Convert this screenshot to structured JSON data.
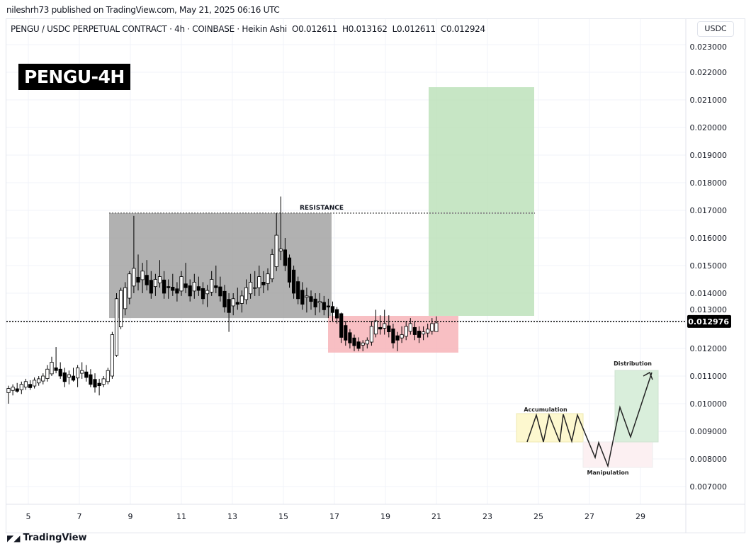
{
  "header": {
    "published": "nileshrh73 published on TradingView.com, May 21, 2025 06:16 UTC",
    "symbol": "PENGU / USDC PERPETUAL CONTRACT · 4h · COINBASE · Heikin Ashi",
    "ohlc": "O0.012611  H0.013162  L0.012611  C0.012924",
    "badge": "PENGU-4H",
    "currency": "USDC"
  },
  "footer": {
    "brand": "TradingView"
  },
  "colors": {
    "resistance_zone": "#9e9e9e",
    "support_zone": "#f7b4b8",
    "target_zone": "#b9e0b7",
    "price_line": "#000000",
    "candle": "#000000"
  },
  "chart_data": {
    "type": "candlestick",
    "ylim": [
      0.0065,
      0.0233
    ],
    "y_ticks": [
      "0.023000",
      "0.022000",
      "0.021000",
      "0.020000",
      "0.019000",
      "0.018000",
      "0.017000",
      "0.016000",
      "0.015000",
      "0.014000",
      "0.013000",
      "0.012000",
      "0.011000",
      "0.010000",
      "0.009000",
      "0.008000",
      "0.007000"
    ],
    "x_ticks": [
      "5",
      "7",
      "9",
      "11",
      "13",
      "15",
      "17",
      "19",
      "21",
      "23",
      "25",
      "27",
      "29"
    ],
    "last_price": "0.012976",
    "annotations": {
      "resistance_label": "RESISTANCE",
      "resistance_level": 0.0169,
      "resistance_zone": [
        0.0131,
        0.0169
      ],
      "support_zone": [
        0.01185,
        0.01318
      ],
      "target_zone": [
        0.01318,
        0.02146
      ],
      "inset": {
        "accumulation": "Accumulation",
        "manipulation": "Manipulation",
        "distribution": "Distribution"
      }
    },
    "candles": [
      [
        0.0104,
        0.01065,
        0.01,
        0.01055
      ],
      [
        0.01048,
        0.0107,
        0.0103,
        0.0106
      ],
      [
        0.01054,
        0.01075,
        0.0104,
        0.01045
      ],
      [
        0.0105,
        0.0108,
        0.01035,
        0.0107
      ],
      [
        0.0106,
        0.0109,
        0.0105,
        0.0108
      ],
      [
        0.0107,
        0.01085,
        0.0105,
        0.01058
      ],
      [
        0.01064,
        0.01095,
        0.01055,
        0.01085
      ],
      [
        0.01075,
        0.011,
        0.01065,
        0.0109
      ],
      [
        0.01082,
        0.0111,
        0.0107,
        0.011
      ],
      [
        0.01091,
        0.0114,
        0.0108,
        0.01125
      ],
      [
        0.01108,
        0.0117,
        0.011,
        0.0115
      ],
      [
        0.0113,
        0.01205,
        0.0111,
        0.0112
      ],
      [
        0.01125,
        0.0115,
        0.0109,
        0.011
      ],
      [
        0.01112,
        0.0113,
        0.0106,
        0.0108
      ],
      [
        0.01096,
        0.0112,
        0.0107,
        0.01105
      ],
      [
        0.011,
        0.0113,
        0.0108,
        0.01085
      ],
      [
        0.01093,
        0.0114,
        0.0106,
        0.0113
      ],
      [
        0.0111,
        0.0115,
        0.0109,
        0.0112
      ],
      [
        0.01115,
        0.0114,
        0.0108,
        0.01095
      ],
      [
        0.01105,
        0.01125,
        0.0106,
        0.0107
      ],
      [
        0.01088,
        0.0111,
        0.0104,
        0.0106
      ],
      [
        0.01074,
        0.0109,
        0.0103,
        0.01065
      ],
      [
        0.0107,
        0.011,
        0.0106,
        0.0109
      ],
      [
        0.0108,
        0.0113,
        0.0107,
        0.0112
      ],
      [
        0.011,
        0.0126,
        0.0109,
        0.0125
      ],
      [
        0.01175,
        0.014,
        0.0117,
        0.0138
      ],
      [
        0.01278,
        0.0142,
        0.0127,
        0.0141
      ],
      [
        0.01344,
        0.0144,
        0.0132,
        0.0142
      ],
      [
        0.01382,
        0.0148,
        0.0136,
        0.0147
      ],
      [
        0.01426,
        0.0168,
        0.014,
        0.0149
      ],
      [
        0.01458,
        0.0154,
        0.0141,
        0.0144
      ],
      [
        0.01449,
        0.0151,
        0.014,
        0.0148
      ],
      [
        0.01465,
        0.0152,
        0.0141,
        0.0143
      ],
      [
        0.01447,
        0.0148,
        0.0138,
        0.014
      ],
      [
        0.01424,
        0.0147,
        0.0139,
        0.0145
      ],
      [
        0.01437,
        0.0152,
        0.0142,
        0.0146
      ],
      [
        0.01448,
        0.0148,
        0.0138,
        0.014
      ],
      [
        0.01424,
        0.0145,
        0.0138,
        0.0142
      ],
      [
        0.01422,
        0.0147,
        0.0139,
        0.0141
      ],
      [
        0.01416,
        0.0144,
        0.0137,
        0.014
      ],
      [
        0.01408,
        0.0148,
        0.0139,
        0.0146
      ],
      [
        0.01434,
        0.0151,
        0.014,
        0.0142
      ],
      [
        0.01427,
        0.0145,
        0.0137,
        0.0139
      ],
      [
        0.01408,
        0.0147,
        0.0138,
        0.0144
      ],
      [
        0.01424,
        0.0146,
        0.0139,
        0.0141
      ],
      [
        0.01417,
        0.0144,
        0.0136,
        0.0138
      ],
      [
        0.01398,
        0.0143,
        0.0135,
        0.0141
      ],
      [
        0.01404,
        0.0148,
        0.0139,
        0.0145
      ],
      [
        0.01427,
        0.015,
        0.014,
        0.0142
      ],
      [
        0.01423,
        0.0146,
        0.0137,
        0.0139
      ],
      [
        0.01407,
        0.0143,
        0.0133,
        0.0135
      ],
      [
        0.01378,
        0.014,
        0.0126,
        0.0133
      ],
      [
        0.01354,
        0.014,
        0.0132,
        0.0138
      ],
      [
        0.01367,
        0.0142,
        0.0134,
        0.0136
      ],
      [
        0.01363,
        0.0141,
        0.0133,
        0.0139
      ],
      [
        0.01377,
        0.0145,
        0.0136,
        0.0142
      ],
      [
        0.01398,
        0.0147,
        0.0138,
        0.0144
      ],
      [
        0.01419,
        0.0148,
        0.0139,
        0.0142
      ],
      [
        0.0142,
        0.015,
        0.0139,
        0.0146
      ],
      [
        0.0144,
        0.0148,
        0.014,
        0.0143
      ],
      [
        0.01435,
        0.0149,
        0.0141,
        0.0147
      ],
      [
        0.01452,
        0.0156,
        0.0144,
        0.0154
      ],
      [
        0.01496,
        0.0169,
        0.0148,
        0.0161
      ],
      [
        0.01553,
        0.0175,
        0.0152,
        0.0156
      ],
      [
        0.01557,
        0.016,
        0.0148,
        0.015
      ],
      [
        0.01528,
        0.0154,
        0.0142,
        0.0144
      ],
      [
        0.01484,
        0.015,
        0.0138,
        0.014
      ],
      [
        0.01442,
        0.0146,
        0.0136,
        0.0138
      ],
      [
        0.01411,
        0.0144,
        0.0134,
        0.0136
      ],
      [
        0.01385,
        0.0142,
        0.0133,
        0.0139
      ],
      [
        0.01388,
        0.0141,
        0.0134,
        0.0137
      ],
      [
        0.01379,
        0.014,
        0.0132,
        0.0135
      ],
      [
        0.01365,
        0.014,
        0.0133,
        0.0137
      ],
      [
        0.01367,
        0.0139,
        0.0132,
        0.0134
      ],
      [
        0.01354,
        0.0138,
        0.0131,
        0.0135
      ],
      [
        0.01352,
        0.0137,
        0.013,
        0.0133
      ],
      [
        0.01341,
        0.0135,
        0.0129,
        0.0131
      ],
      [
        0.01326,
        0.0133,
        0.0122,
        0.0124
      ],
      [
        0.01283,
        0.013,
        0.0121,
        0.0123
      ],
      [
        0.01257,
        0.0127,
        0.012,
        0.0122
      ],
      [
        0.01238,
        0.0125,
        0.0119,
        0.0121
      ],
      [
        0.01224,
        0.0124,
        0.0119,
        0.012
      ],
      [
        0.01212,
        0.0123,
        0.0119,
        0.0122
      ],
      [
        0.01216,
        0.0124,
        0.012,
        0.0123
      ],
      [
        0.01223,
        0.013,
        0.0121,
        0.0128
      ],
      [
        0.01252,
        0.0134,
        0.0124,
        0.013
      ],
      [
        0.01276,
        0.0132,
        0.0125,
        0.0127
      ],
      [
        0.01273,
        0.0134,
        0.0125,
        0.0129
      ],
      [
        0.01282,
        0.0132,
        0.0124,
        0.0126
      ],
      [
        0.01271,
        0.0129,
        0.012,
        0.0122
      ],
      [
        0.01246,
        0.0126,
        0.0119,
        0.0123
      ],
      [
        0.01238,
        0.0128,
        0.0122,
        0.0125
      ],
      [
        0.01244,
        0.013,
        0.0123,
        0.0128
      ],
      [
        0.01262,
        0.0131,
        0.0125,
        0.0129
      ],
      [
        0.01276,
        0.013,
        0.0123,
        0.0125
      ],
      [
        0.01263,
        0.0128,
        0.0122,
        0.0124
      ],
      [
        0.01252,
        0.0128,
        0.0123,
        0.0126
      ],
      [
        0.01256,
        0.0129,
        0.0124,
        0.0127
      ],
      [
        0.01263,
        0.0131,
        0.0125,
        0.0129
      ],
      [
        0.012611,
        0.013162,
        0.012611,
        0.012924
      ]
    ]
  }
}
